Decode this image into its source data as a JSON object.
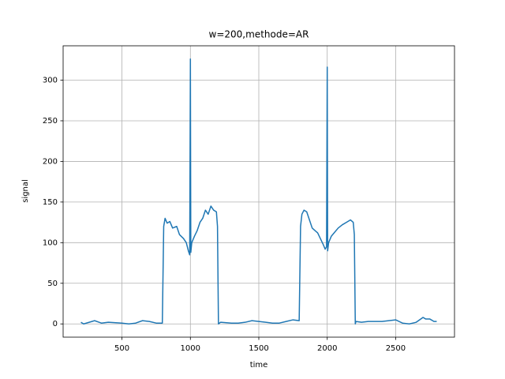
{
  "chart_data": {
    "type": "line",
    "title": "w=200,methode=AR",
    "x_label": "time",
    "y_label": "signal",
    "xlim": [
      70,
      2930
    ],
    "ylim": [
      -16.3,
      342.3
    ],
    "xticks": [
      500,
      1000,
      1500,
      2000,
      2500
    ],
    "yticks": [
      0,
      50,
      100,
      150,
      200,
      250,
      300
    ],
    "grid": true,
    "series": [
      {
        "name": "signal",
        "color": "#1f77b4",
        "x": [
          200,
          220,
          300,
          350,
          400,
          500,
          550,
          600,
          650,
          700,
          750,
          795,
          805,
          815,
          830,
          850,
          870,
          900,
          920,
          950,
          970,
          985,
          995,
          1000,
          1003,
          1010,
          1030,
          1050,
          1070,
          1090,
          1110,
          1130,
          1150,
          1170,
          1190,
          1198,
          1205,
          1220,
          1300,
          1350,
          1400,
          1450,
          1500,
          1550,
          1600,
          1650,
          1700,
          1750,
          1795,
          1805,
          1815,
          1830,
          1850,
          1870,
          1890,
          1910,
          1930,
          1950,
          1970,
          1985,
          1995,
          2000,
          2003,
          2010,
          2030,
          2050,
          2080,
          2110,
          2140,
          2170,
          2190,
          2198,
          2205,
          2210,
          2250,
          2300,
          2400,
          2450,
          2500,
          2550,
          2600,
          2650,
          2700,
          2720,
          2750,
          2780,
          2800
        ],
        "values": [
          2,
          0,
          4,
          1,
          2,
          1,
          0,
          1,
          4,
          3,
          1,
          1,
          120,
          130,
          124,
          126,
          118,
          120,
          110,
          105,
          100,
          90,
          85,
          326,
          88,
          100,
          108,
          115,
          125,
          130,
          140,
          135,
          145,
          140,
          138,
          120,
          0,
          2,
          1,
          1,
          2,
          4,
          3,
          2,
          1,
          1,
          3,
          5,
          4,
          120,
          135,
          140,
          138,
          128,
          118,
          115,
          112,
          105,
          98,
          92,
          95,
          316,
          90,
          100,
          108,
          112,
          118,
          122,
          125,
          128,
          125,
          110,
          0,
          3,
          2,
          3,
          3,
          4,
          5,
          1,
          0,
          2,
          8,
          6,
          6,
          3,
          3
        ]
      }
    ]
  }
}
